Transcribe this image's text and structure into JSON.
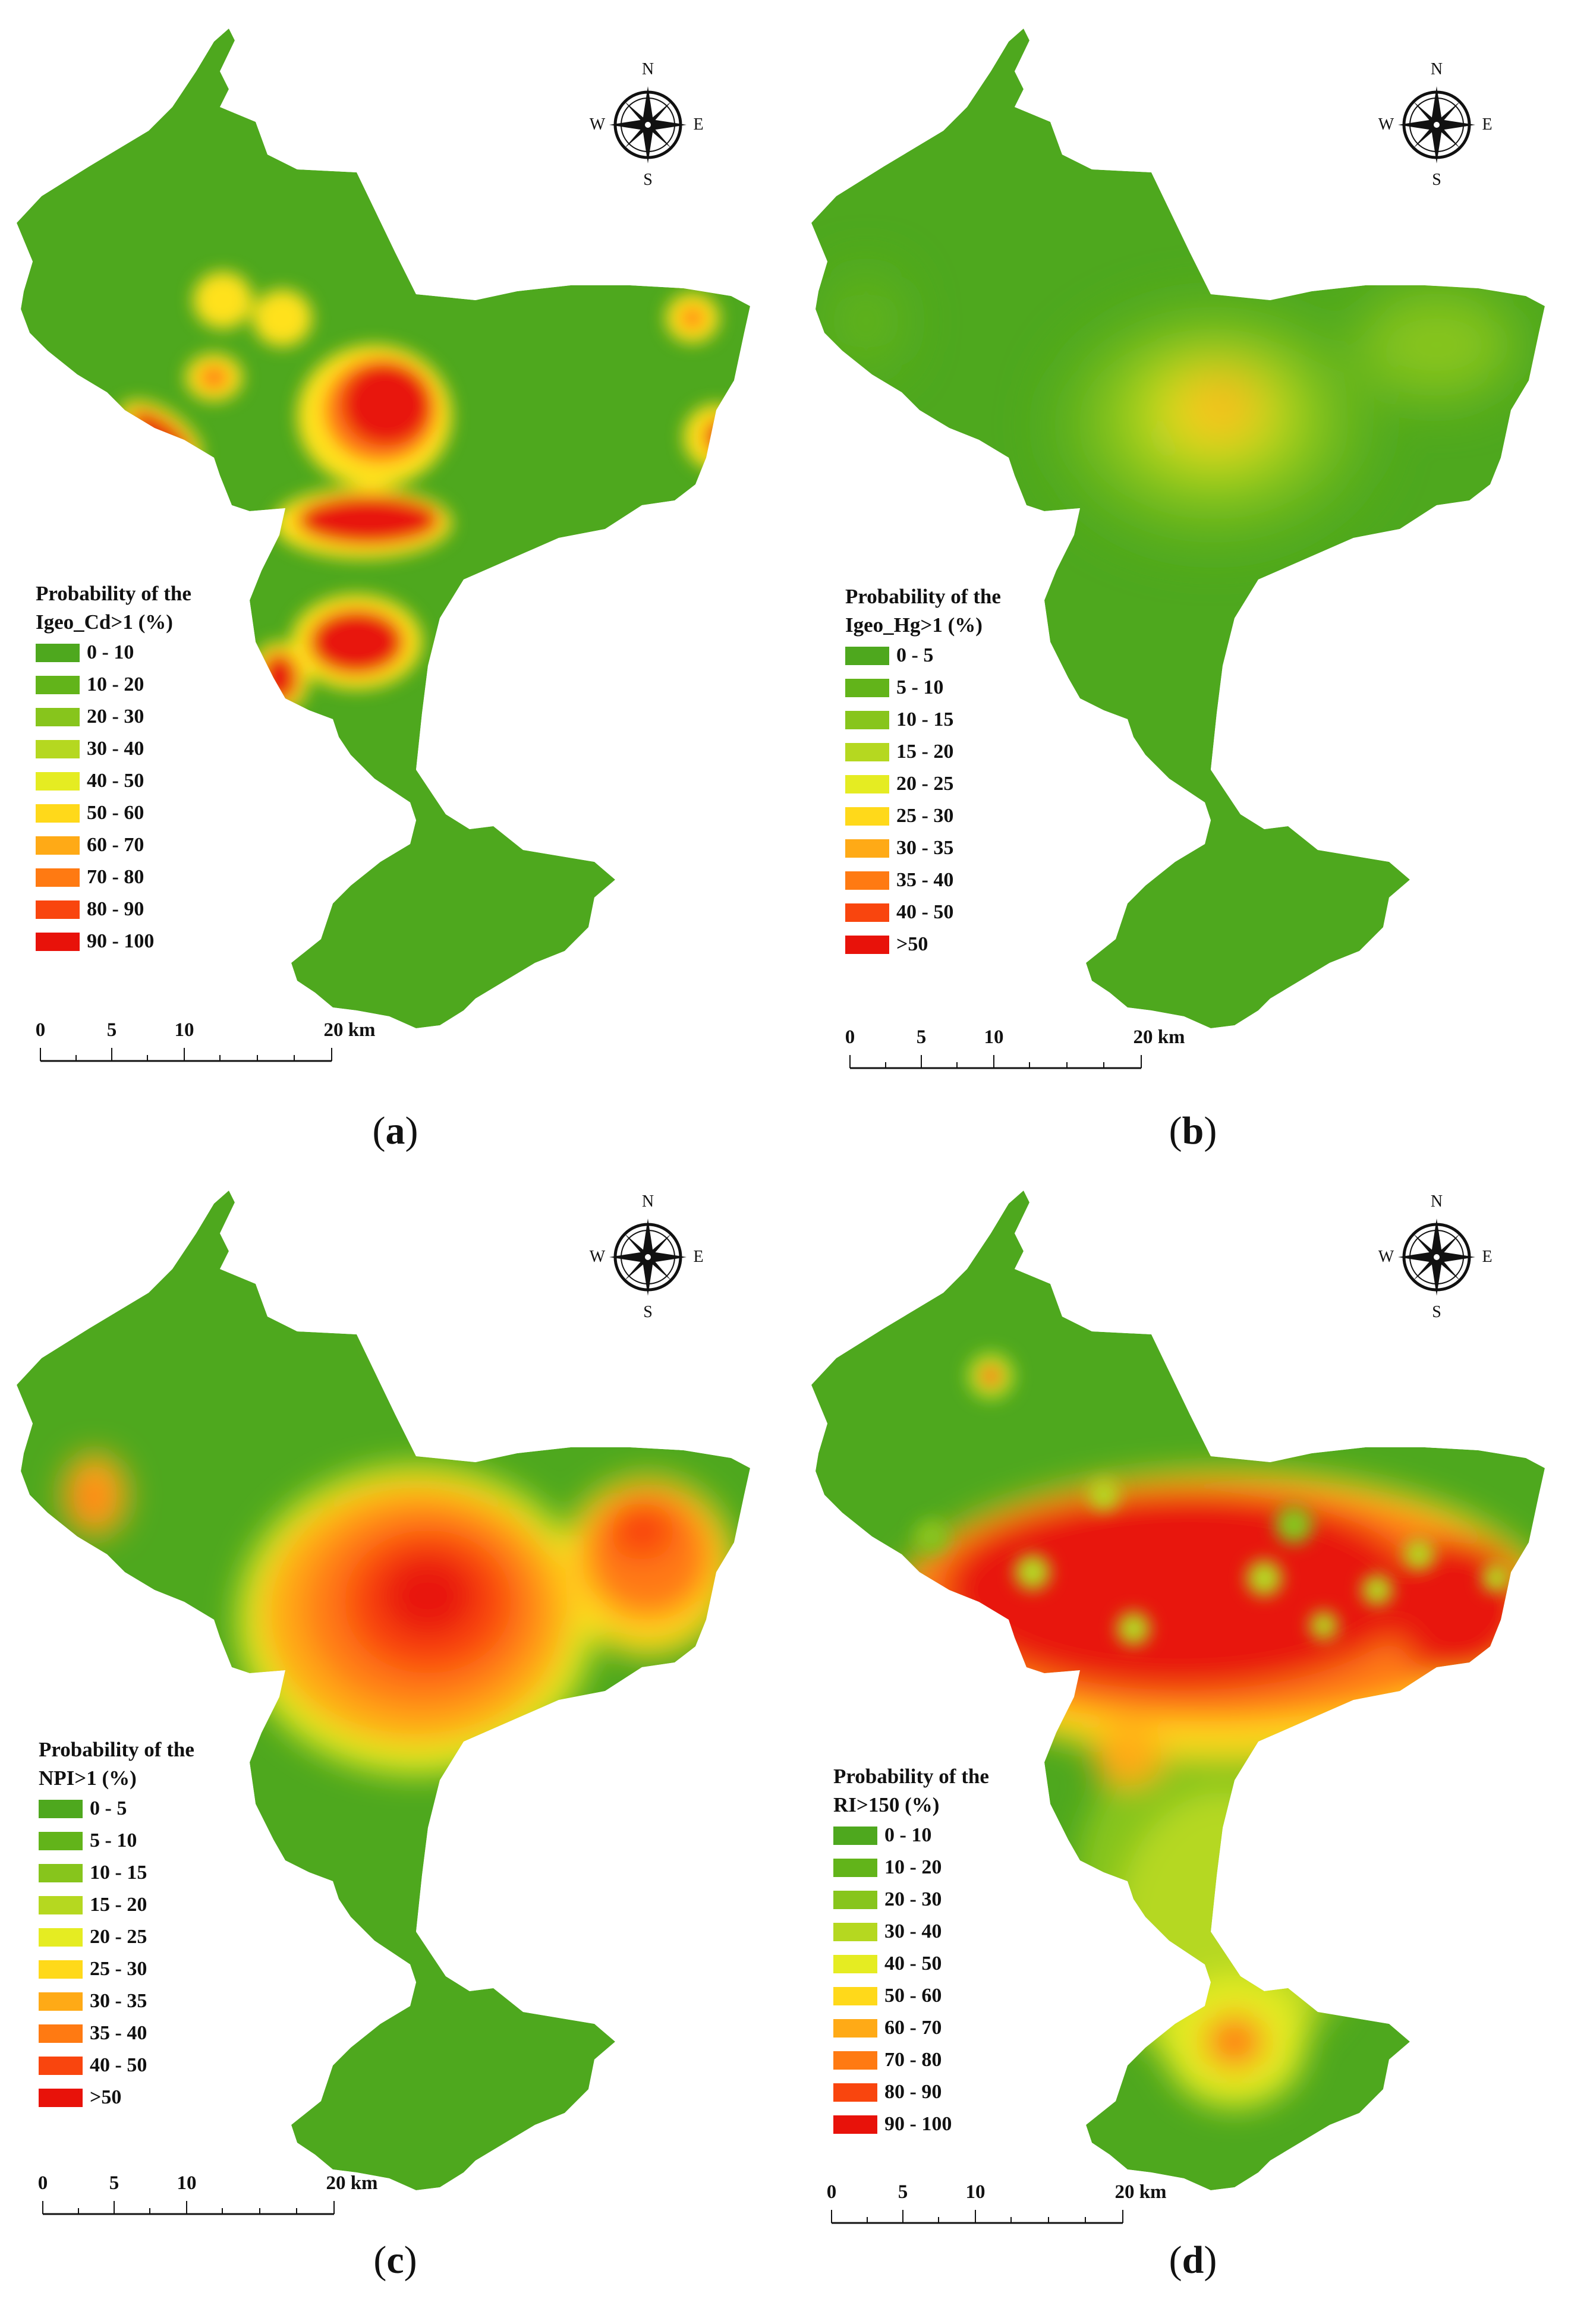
{
  "compass_labels": {
    "n": "N",
    "s": "S",
    "e": "E",
    "w": "W"
  },
  "scale_labels": [
    "0",
    "5",
    "10",
    "20 km"
  ],
  "colors": {
    "ink": "#111111",
    "base_green": "#4ea81e"
  },
  "panels": [
    {
      "caption_letter": "a",
      "legend": {
        "title_line1": "Probability of the",
        "title_line2": "Igeo_Cd>1 (%)",
        "items": [
          {
            "label": "0 - 10",
            "color": "#4ea81e"
          },
          {
            "label": "10 - 20",
            "color": "#62b41a"
          },
          {
            "label": "20 - 30",
            "color": "#87c51c"
          },
          {
            "label": "30 - 40",
            "color": "#b5d820"
          },
          {
            "label": "40 - 50",
            "color": "#e5ec22"
          },
          {
            "label": "50 - 60",
            "color": "#ffd91a"
          },
          {
            "label": "60 - 70",
            "color": "#ffaa16"
          },
          {
            "label": "70 - 80",
            "color": "#ff7a12"
          },
          {
            "label": "80 - 90",
            "color": "#f9450e"
          },
          {
            "label": "90 - 100",
            "color": "#e8120a"
          }
        ]
      }
    },
    {
      "caption_letter": "b",
      "legend": {
        "title_line1": "Probability of the",
        "title_line2": "Igeo_Hg>1 (%)",
        "items": [
          {
            "label": "0 - 5",
            "color": "#4ea81e"
          },
          {
            "label": "5 - 10",
            "color": "#62b41a"
          },
          {
            "label": "10 - 15",
            "color": "#87c51c"
          },
          {
            "label": "15 - 20",
            "color": "#b5d820"
          },
          {
            "label": "20 - 25",
            "color": "#e5ec22"
          },
          {
            "label": "25 - 30",
            "color": "#ffd91a"
          },
          {
            "label": "30 - 35",
            "color": "#ffaa16"
          },
          {
            "label": "35 - 40",
            "color": "#ff7a12"
          },
          {
            "label": "40 - 50",
            "color": "#f9450e"
          },
          {
            "label": ">50",
            "color": "#e8120a"
          }
        ]
      }
    },
    {
      "caption_letter": "c",
      "legend": {
        "title_line1": "Probability of the",
        "title_line2": "NPI>1 (%)",
        "items": [
          {
            "label": "0 - 5",
            "color": "#4ea81e"
          },
          {
            "label": "5 - 10",
            "color": "#62b41a"
          },
          {
            "label": "10 - 15",
            "color": "#87c51c"
          },
          {
            "label": "15 - 20",
            "color": "#b5d820"
          },
          {
            "label": "20 - 25",
            "color": "#e5ec22"
          },
          {
            "label": "25 - 30",
            "color": "#ffd91a"
          },
          {
            "label": "30 - 35",
            "color": "#ffaa16"
          },
          {
            "label": "35 - 40",
            "color": "#ff7a12"
          },
          {
            "label": "40 - 50",
            "color": "#f9450e"
          },
          {
            "label": ">50",
            "color": "#e8120a"
          }
        ]
      }
    },
    {
      "caption_letter": "d",
      "legend": {
        "title_line1": "Probability of the",
        "title_line2": "RI>150 (%)",
        "items": [
          {
            "label": "0 - 10",
            "color": "#4ea81e"
          },
          {
            "label": "10 - 20",
            "color": "#62b41a"
          },
          {
            "label": "20 - 30",
            "color": "#87c51c"
          },
          {
            "label": "30 - 40",
            "color": "#b5d820"
          },
          {
            "label": "40 - 50",
            "color": "#e5ec22"
          },
          {
            "label": "50 - 60",
            "color": "#ffd91a"
          },
          {
            "label": "60 - 70",
            "color": "#ffaa16"
          },
          {
            "label": "70 - 80",
            "color": "#ff7a12"
          },
          {
            "label": "80 - 90",
            "color": "#f9450e"
          },
          {
            "label": "90 - 100",
            "color": "#e8120a"
          }
        ]
      }
    }
  ]
}
